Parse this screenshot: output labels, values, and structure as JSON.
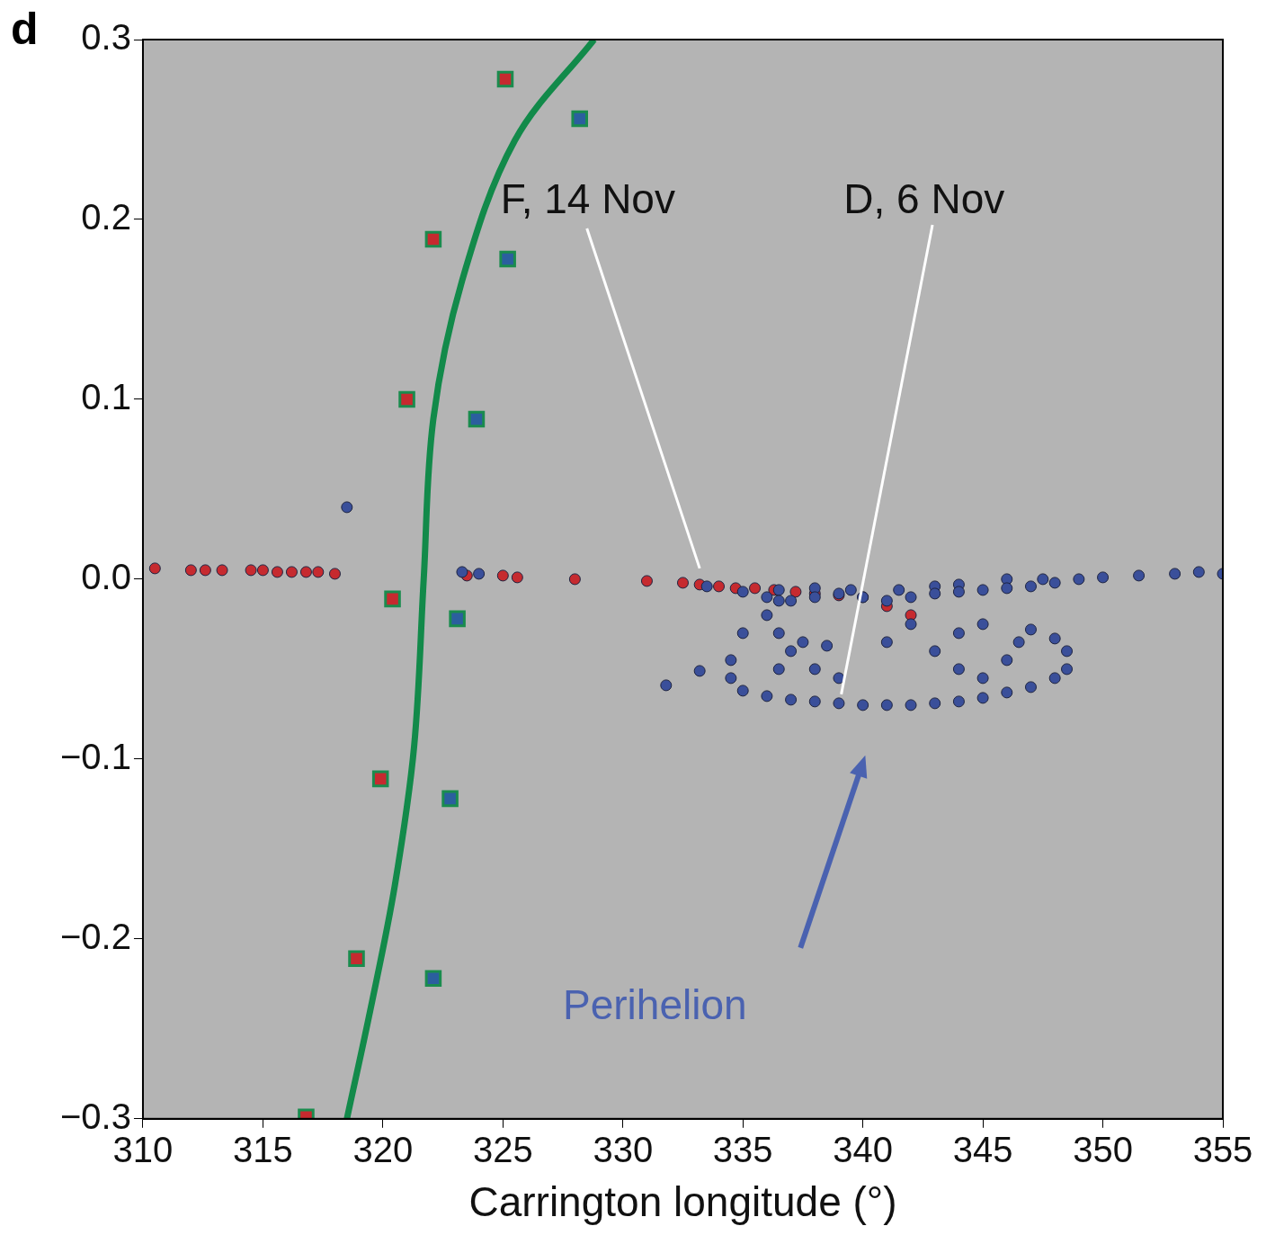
{
  "chart_data": {
    "type": "scatter",
    "panel_label": "d",
    "x_label": "Carrington longitude (°)",
    "xlim": [
      310,
      355
    ],
    "xticks": [
      310,
      315,
      320,
      325,
      330,
      335,
      340,
      345,
      350,
      355
    ],
    "ylim": [
      -0.3,
      0.3
    ],
    "yticks": [
      {
        "value": -0.3,
        "label": "−0.3"
      },
      {
        "value": -0.2,
        "label": "−0.2"
      },
      {
        "value": -0.1,
        "label": "−0.1"
      },
      {
        "value": 0,
        "label": "0.0"
      },
      0.1,
      0.2,
      0.3
    ],
    "grid": false,
    "series": [
      {
        "type": "line",
        "color": "#128a4a",
        "line_style": "solid",
        "marker": "none",
        "x": [
          328.8,
          325.5,
          323.3,
          322.1,
          321.7,
          321.3,
          320.5,
          319.5,
          318.5
        ],
        "values": [
          0.3,
          0.244,
          0.166,
          0.089,
          0.0,
          -0.093,
          -0.17,
          -0.238,
          -0.3
        ]
      },
      {
        "type": "scatter",
        "color": "#c62a2f",
        "marker": "circle",
        "x": [
          310.5,
          312,
          312.6,
          313.3,
          314.5,
          315,
          315.6,
          316.2,
          316.8,
          317.3,
          318,
          323.5,
          325,
          325.6,
          328,
          331,
          332.5,
          333.2,
          334,
          334.7,
          335.5,
          336.3,
          337.2,
          338,
          339,
          340,
          341,
          342
        ],
        "values": [
          0.006,
          0.005,
          0.005,
          0.005,
          0.005,
          0.005,
          0.004,
          0.004,
          0.004,
          0.004,
          0.003,
          0.002,
          0.002,
          0.001,
          0.0,
          -0.001,
          -0.002,
          -0.003,
          -0.004,
          -0.005,
          -0.005,
          -0.006,
          -0.007,
          -0.008,
          -0.009,
          -0.01,
          -0.015,
          -0.02
        ]
      },
      {
        "type": "scatter",
        "color": "#3a4f9a",
        "marker": "circle",
        "x": [
          355,
          354,
          353,
          351.5,
          350,
          349,
          347.5,
          346,
          344,
          343,
          341.5,
          339.5,
          338,
          336.5,
          335,
          333.5,
          324,
          323.3,
          336,
          337,
          338,
          339,
          340,
          341,
          342,
          343,
          344,
          345,
          346,
          347,
          348,
          335,
          334.5,
          334.5,
          335,
          336,
          337,
          338,
          339,
          340,
          341,
          342,
          343,
          344,
          345,
          346,
          347,
          348,
          348.5,
          348.5,
          348,
          347,
          336,
          336.5,
          337,
          338,
          339,
          336.5,
          337.5,
          345,
          344,
          343,
          344,
          345,
          346,
          346.5,
          342,
          341,
          318.5,
          331.8,
          333.2,
          338.5,
          336.5
        ],
        "values": [
          0.003,
          0.004,
          0.003,
          0.002,
          0.001,
          0.0,
          0.0,
          0.0,
          -0.003,
          -0.004,
          -0.006,
          -0.006,
          -0.005,
          -0.006,
          -0.007,
          -0.004,
          0.003,
          0.004,
          -0.01,
          -0.012,
          -0.01,
          -0.008,
          -0.01,
          -0.012,
          -0.01,
          -0.008,
          -0.007,
          -0.006,
          -0.005,
          -0.004,
          -0.002,
          -0.03,
          -0.045,
          -0.055,
          -0.062,
          -0.065,
          -0.067,
          -0.068,
          -0.069,
          -0.07,
          -0.07,
          -0.07,
          -0.069,
          -0.068,
          -0.066,
          -0.063,
          -0.06,
          -0.055,
          -0.05,
          -0.04,
          -0.033,
          -0.028,
          -0.02,
          -0.03,
          -0.04,
          -0.05,
          -0.055,
          -0.05,
          -0.035,
          -0.025,
          -0.03,
          -0.04,
          -0.05,
          -0.055,
          -0.045,
          -0.035,
          -0.025,
          -0.035,
          0.04,
          -0.059,
          -0.051,
          -0.037,
          -0.012
        ]
      },
      {
        "type": "scatter",
        "color": "#c62a2f",
        "marker": "square",
        "x": [
          325.1,
          322.1,
          321.0,
          320.4,
          319.9,
          318.9,
          316.8
        ],
        "values": [
          0.278,
          0.189,
          0.1,
          -0.011,
          -0.111,
          -0.211,
          -0.299
        ]
      },
      {
        "type": "scatter",
        "color": "#2b5f9e",
        "marker": "square",
        "x": [
          328.2,
          325.2,
          323.9,
          323.1,
          322.8,
          322.1
        ],
        "values": [
          0.256,
          0.178,
          0.089,
          -0.022,
          -0.122,
          -0.222
        ]
      }
    ],
    "annotations": [
      {
        "text": "F, 14 Nov",
        "x": 324.9,
        "y": 0.21,
        "color": "#111111",
        "pointer_color": "#ffffff",
        "marker": "line",
        "pointer": [
          [
            328.5,
            0.195
          ],
          [
            333.2,
            0.006
          ]
        ]
      },
      {
        "text": "D, 6 Nov",
        "x": 339.2,
        "y": 0.21,
        "color": "#111111",
        "pointer_color": "#ffffff",
        "marker": "line",
        "pointer": [
          [
            342.9,
            0.197
          ],
          [
            339.1,
            -0.064
          ]
        ]
      },
      {
        "text": "Perihelion",
        "x": 327.5,
        "y": -0.238,
        "color": "#4a62b0",
        "pointer_color": "#4a62b0",
        "marker": "arrow",
        "pointer": [
          [
            337.4,
            -0.205
          ],
          [
            340.1,
            -0.098
          ]
        ]
      }
    ]
  }
}
